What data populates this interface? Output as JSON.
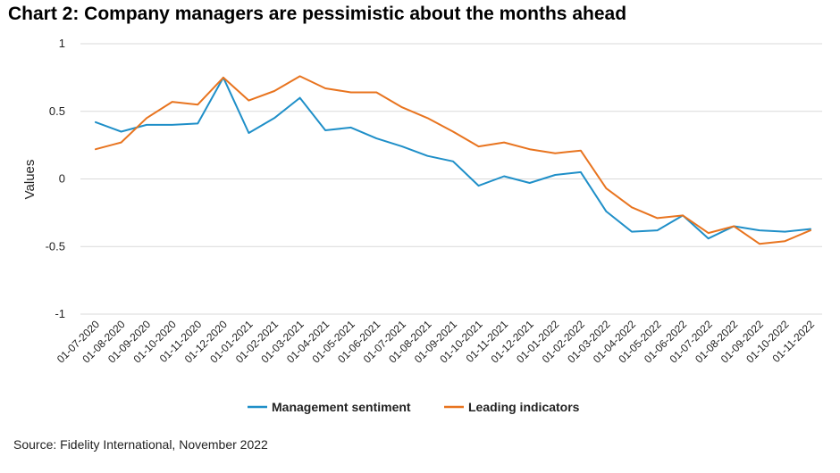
{
  "title": "Chart 2: Company managers are pessimistic about the months ahead",
  "source": "Source: Fidelity International, November 2022",
  "chart_data": {
    "type": "line",
    "ylabel": "Values",
    "xlabel": "",
    "ylim": [
      -1,
      1
    ],
    "yticks": [
      1,
      0.5,
      0,
      -0.5,
      -1
    ],
    "ytick_labels": [
      "1",
      "0.5",
      "0",
      "-0.5",
      "-1"
    ],
    "grid": true,
    "legend_position": "bottom",
    "categories": [
      "01-07-2020",
      "01-08-2020",
      "01-09-2020",
      "01-10-2020",
      "01-11-2020",
      "01-12-2020",
      "01-01-2021",
      "01-02-2021",
      "01-03-2021",
      "01-04-2021",
      "01-05-2021",
      "01-06-2021",
      "01-07-2021",
      "01-08-2021",
      "01-09-2021",
      "01-10-2021",
      "01-11-2021",
      "01-12-2021",
      "01-01-2022",
      "01-02-2022",
      "01-03-2022",
      "01-04-2022",
      "01-05-2022",
      "01-06-2022",
      "01-07-2022",
      "01-08-2022",
      "01-09-2022",
      "01-10-2022",
      "01-11-2022"
    ],
    "series": [
      {
        "name": "Management sentiment",
        "color": "#1f8fc8",
        "values": [
          0.42,
          0.35,
          0.4,
          0.4,
          0.41,
          0.75,
          0.34,
          0.45,
          0.6,
          0.36,
          0.38,
          0.3,
          0.24,
          0.17,
          0.13,
          -0.05,
          0.02,
          -0.03,
          0.03,
          0.05,
          -0.24,
          -0.39,
          -0.38,
          -0.27,
          -0.44,
          -0.35,
          -0.38,
          -0.39,
          -0.37
        ]
      },
      {
        "name": "Leading indicators",
        "color": "#e8741f",
        "values": [
          0.22,
          0.27,
          0.45,
          0.57,
          0.55,
          0.75,
          0.58,
          0.65,
          0.76,
          0.67,
          0.64,
          0.64,
          0.53,
          0.45,
          0.35,
          0.24,
          0.27,
          0.22,
          0.19,
          0.21,
          -0.07,
          -0.21,
          -0.29,
          -0.27,
          -0.4,
          -0.35,
          -0.48,
          -0.46,
          -0.38
        ]
      }
    ]
  }
}
